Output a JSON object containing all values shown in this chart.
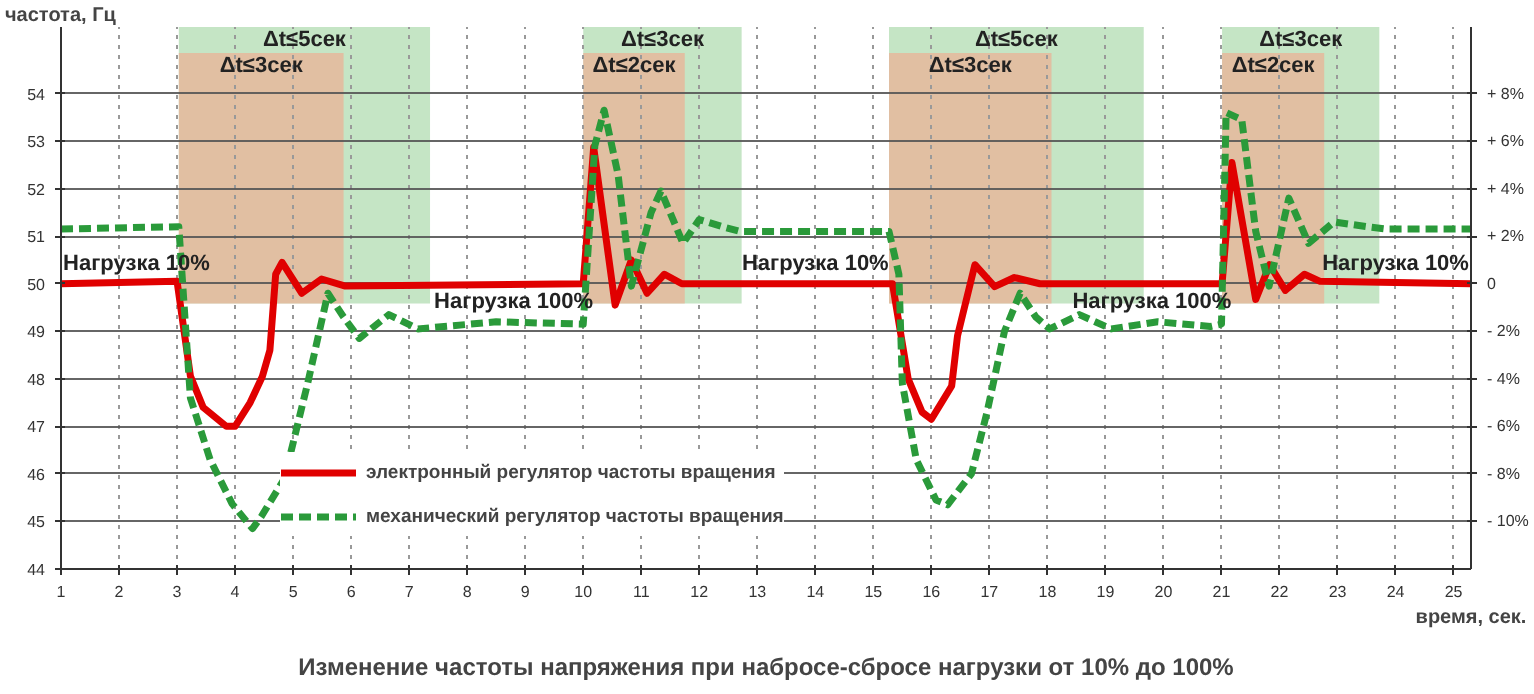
{
  "chart_data": {
    "type": "line",
    "title": "Изменение частоты напряжения при набросе-сбросе нагрузки от 10% до 100%",
    "xlabel": "время, сек.",
    "ylabel": "частота, Гц",
    "xlim": [
      1,
      25.3
    ],
    "xticks": [
      1,
      2,
      3,
      4,
      5,
      6,
      7,
      8,
      9,
      10,
      11,
      12,
      13,
      14,
      15,
      16,
      17,
      18,
      19,
      20,
      21,
      22,
      23,
      24,
      25
    ],
    "ylim": [
      44,
      55.4
    ],
    "yticks": [
      44,
      45,
      46,
      47,
      48,
      49,
      50,
      51,
      52,
      53,
      54
    ],
    "y2lim": [
      -12,
      10.8
    ],
    "y2ticks": [
      {
        "value": 8,
        "label": "+ 8%"
      },
      {
        "value": 6,
        "label": "+ 6%"
      },
      {
        "value": 4,
        "label": "+ 4%"
      },
      {
        "value": 2,
        "label": "+ 2%"
      },
      0,
      {
        "value": -2,
        "label": "- 2%"
      },
      {
        "value": -4,
        "label": "- 4%"
      },
      {
        "value": -6,
        "label": "- 6%"
      },
      {
        "value": -8,
        "label": "- 8%"
      },
      {
        "value": -10,
        "label": "- 10%"
      }
    ],
    "grid": true,
    "legend": "bottom",
    "series": [
      {
        "name": "электронный регулятор частоты вращения",
        "color": "#e00000",
        "line_style": "solid",
        "x": [
          1,
          3.0,
          3.23,
          3.45,
          3.85,
          4.0,
          4.26,
          4.47,
          4.6,
          4.7,
          4.81,
          5.15,
          5.49,
          5.9,
          10.0,
          10.18,
          10.55,
          10.83,
          11.1,
          11.4,
          11.7,
          15.33,
          15.6,
          15.84,
          16.0,
          16.35,
          16.45,
          16.75,
          17.09,
          17.43,
          17.87,
          21.01,
          21.18,
          21.59,
          21.83,
          22.1,
          22.43,
          22.7,
          25.3
        ],
        "values": [
          50,
          50.05,
          48.06,
          47.4,
          47.0,
          47.0,
          47.5,
          48.05,
          48.6,
          50.2,
          50.45,
          49.8,
          50.1,
          49.95,
          50.0,
          52.87,
          49.55,
          50.5,
          49.8,
          50.2,
          50.0,
          50.0,
          48.0,
          47.3,
          47.15,
          47.85,
          48.9,
          50.4,
          49.94,
          50.13,
          50.0,
          50.0,
          52.55,
          49.67,
          50.4,
          49.86,
          50.2,
          50.05,
          50.0
        ]
      },
      {
        "name": "механический регулятор частоты вращения",
        "color": "#2a9a3a",
        "line_style": "dashed",
        "x": [
          1,
          3.03,
          3.23,
          3.57,
          3.95,
          4.3,
          4.45,
          4.85,
          5.25,
          5.6,
          5.87,
          6.14,
          6.65,
          7.15,
          8.5,
          10.0,
          10.2,
          10.36,
          10.6,
          10.83,
          11.17,
          11.34,
          11.72,
          12.0,
          12.4,
          12.7,
          15.27,
          15.44,
          15.5,
          15.74,
          16.08,
          16.28,
          16.69,
          16.96,
          17.26,
          17.53,
          17.8,
          18.04,
          18.55,
          19.1,
          19.9,
          20.81,
          21.0,
          21.08,
          21.35,
          21.59,
          21.82,
          22.16,
          22.5,
          22.94,
          23.5,
          23.83,
          25.3
        ],
        "values": [
          51.15,
          51.2,
          47.6,
          46.3,
          45.37,
          44.85,
          45.1,
          45.9,
          47.9,
          49.8,
          49.3,
          48.85,
          49.35,
          49.05,
          49.2,
          49.15,
          52.9,
          53.65,
          52.3,
          49.95,
          51.5,
          51.95,
          50.85,
          51.35,
          51.2,
          51.1,
          51.1,
          50.2,
          47.9,
          46.3,
          45.45,
          45.35,
          46.0,
          47.3,
          49.0,
          49.8,
          49.3,
          49.05,
          49.35,
          49.05,
          49.2,
          49.1,
          49.15,
          53.6,
          53.45,
          51.1,
          49.95,
          51.8,
          50.85,
          51.3,
          51.2,
          51.15,
          51.15
        ]
      }
    ],
    "bands": [
      {
        "axis": "x",
        "from": 3.03,
        "to": 7.36,
        "label": "Δt≤5сек",
        "color": "#9fd49f"
      },
      {
        "axis": "x",
        "from": 3.03,
        "to": 5.87,
        "label": "Δt≤3сек",
        "color": "#f3a58a"
      },
      {
        "axis": "x",
        "from": 10.0,
        "to": 12.73,
        "label": "Δt≤3сек",
        "color": "#9fd49f"
      },
      {
        "axis": "x",
        "from": 10.0,
        "to": 11.75,
        "label": "Δt≤2сек",
        "color": "#f3a58a"
      },
      {
        "axis": "x",
        "from": 15.27,
        "to": 19.66,
        "label": "Δt≤5сек",
        "color": "#9fd49f"
      },
      {
        "axis": "x",
        "from": 15.27,
        "to": 18.07,
        "label": "Δt≤3сек",
        "color": "#f3a58a"
      },
      {
        "axis": "x",
        "from": 21.01,
        "to": 23.72,
        "label": "Δt≤3сек",
        "color": "#9fd49f"
      },
      {
        "axis": "x",
        "from": 21.01,
        "to": 22.77,
        "label": "Δt≤2сек",
        "color": "#f3a58a"
      }
    ],
    "annotations": [
      {
        "text": "Нагрузка 10%",
        "x": 2.3,
        "y": 50
      },
      {
        "text": "Нагрузка 100%",
        "x": 8.8,
        "y": 49.2
      },
      {
        "text": "Нагрузка 10%",
        "x": 14.0,
        "y": 50
      },
      {
        "text": "Нагрузка 100%",
        "x": 19.8,
        "y": 49.2
      },
      {
        "text": "Нагрузка 10%",
        "x": 24.0,
        "y": 50
      }
    ]
  }
}
